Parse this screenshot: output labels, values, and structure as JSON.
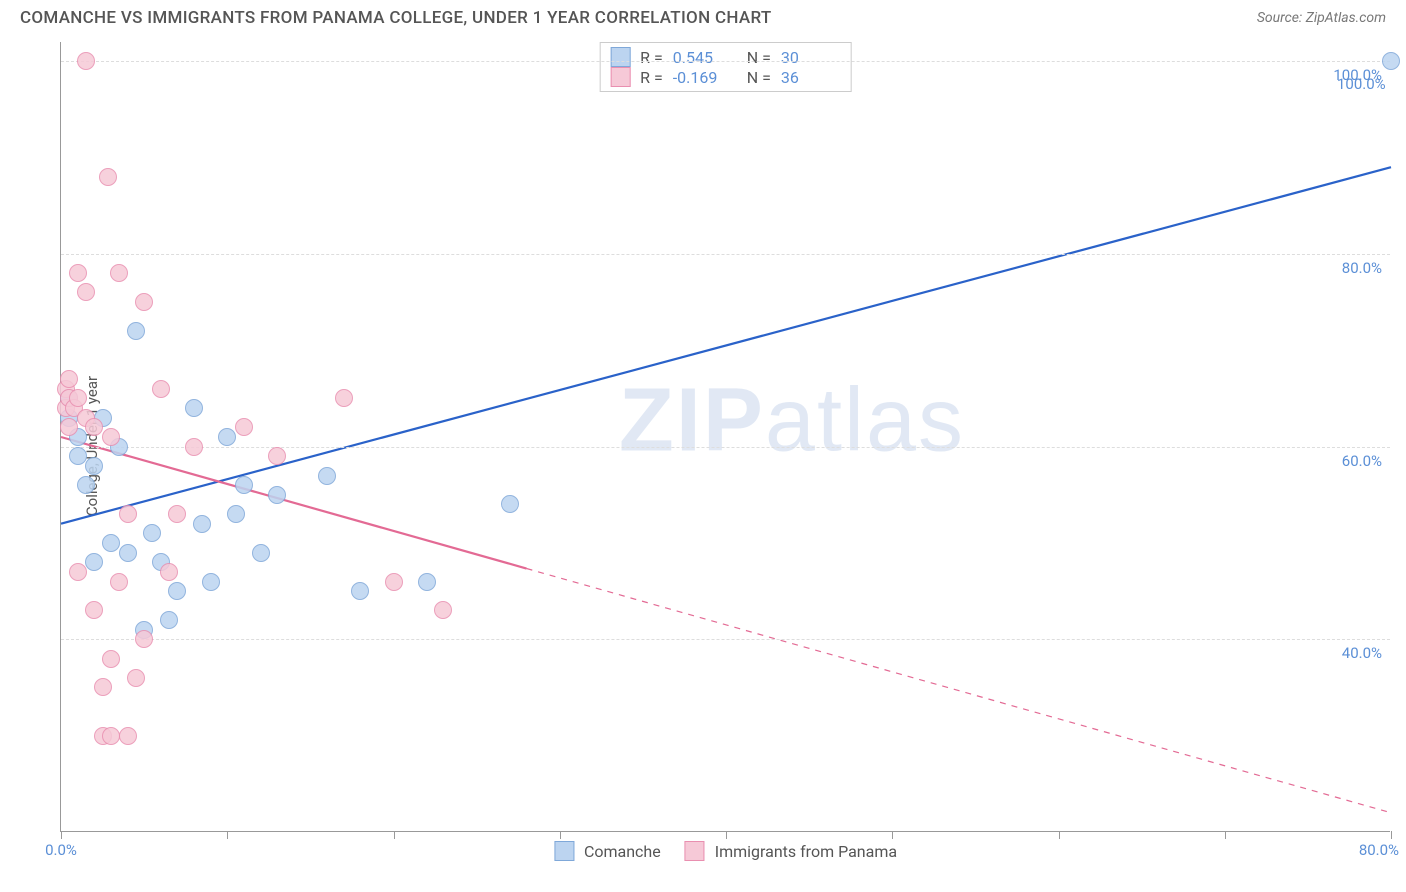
{
  "title": "COMANCHE VS IMMIGRANTS FROM PANAMA COLLEGE, UNDER 1 YEAR CORRELATION CHART",
  "source": "Source: ZipAtlas.com",
  "y_axis_label": "College, Under 1 year",
  "watermark": "ZIPatlas",
  "chart": {
    "type": "scatter",
    "xlim": [
      0,
      80
    ],
    "ylim": [
      20,
      102
    ],
    "x_ticks": [
      0,
      10,
      20,
      30,
      40,
      50,
      60,
      70,
      80
    ],
    "x_tick_labels": {
      "0": "0.0%",
      "80": "80.0%"
    },
    "y_gridlines": [
      40,
      60,
      80,
      100
    ],
    "y_tick_labels": {
      "40": "40.0%",
      "60": "60.0%",
      "80": "80.0%",
      "100": "100.0%"
    },
    "background_color": "#ffffff",
    "grid_color": "#dddddd",
    "axis_color": "#999999",
    "tick_label_color": "#5b8fd6",
    "marker_radius": 9,
    "marker_opacity": 0.85
  },
  "series": [
    {
      "name": "Comanche",
      "color_fill": "#bcd4f0",
      "color_stroke": "#7fa8d9",
      "R": "0.545",
      "N": "30",
      "trend": {
        "x1": 0,
        "y1": 52,
        "x2": 80,
        "y2": 89,
        "dashed_from_x": null
      },
      "line_color": "#2a62c9",
      "line_width": 2.2,
      "points": [
        [
          0.5,
          63
        ],
        [
          0.5,
          65
        ],
        [
          1,
          59
        ],
        [
          1,
          61
        ],
        [
          1.5,
          56
        ],
        [
          2,
          58
        ],
        [
          2,
          48
        ],
        [
          2.5,
          63
        ],
        [
          3,
          50
        ],
        [
          3.5,
          60
        ],
        [
          4,
          49
        ],
        [
          4.5,
          72
        ],
        [
          5,
          41
        ],
        [
          5.5,
          51
        ],
        [
          6,
          48
        ],
        [
          6.5,
          42
        ],
        [
          7,
          45
        ],
        [
          8,
          64
        ],
        [
          8.5,
          52
        ],
        [
          9,
          46
        ],
        [
          10,
          61
        ],
        [
          10.5,
          53
        ],
        [
          11,
          56
        ],
        [
          12,
          49
        ],
        [
          13,
          55
        ],
        [
          16,
          57
        ],
        [
          18,
          45
        ],
        [
          22,
          46
        ],
        [
          27,
          54
        ],
        [
          80,
          100
        ]
      ],
      "labeled_point": {
        "x": 80,
        "y": 100,
        "label": "100.0%"
      }
    },
    {
      "name": "Immigrants from Panama",
      "color_fill": "#f6c9d7",
      "color_stroke": "#e98fb0",
      "R": "-0.169",
      "N": "36",
      "trend": {
        "x1": 0,
        "y1": 61,
        "x2": 80,
        "y2": 22,
        "dashed_from_x": 28
      },
      "line_color": "#e36a94",
      "line_width": 2.2,
      "points": [
        [
          0.3,
          66
        ],
        [
          0.3,
          64
        ],
        [
          0.5,
          65
        ],
        [
          0.5,
          62
        ],
        [
          0.5,
          67
        ],
        [
          0.8,
          64
        ],
        [
          1,
          65
        ],
        [
          1,
          78
        ],
        [
          1,
          47
        ],
        [
          1.5,
          63
        ],
        [
          1.5,
          76
        ],
        [
          1.5,
          100
        ],
        [
          2,
          43
        ],
        [
          2,
          62
        ],
        [
          2.5,
          35
        ],
        [
          2.5,
          30
        ],
        [
          2.8,
          88
        ],
        [
          3,
          61
        ],
        [
          3,
          38
        ],
        [
          3,
          30
        ],
        [
          3.5,
          78
        ],
        [
          3.5,
          46
        ],
        [
          4,
          53
        ],
        [
          4,
          30
        ],
        [
          4.5,
          36
        ],
        [
          5,
          40
        ],
        [
          5,
          75
        ],
        [
          6,
          66
        ],
        [
          6.5,
          47
        ],
        [
          7,
          53
        ],
        [
          8,
          60
        ],
        [
          11,
          62
        ],
        [
          13,
          59
        ],
        [
          17,
          65
        ],
        [
          20,
          46
        ],
        [
          23,
          43
        ]
      ]
    }
  ],
  "legend_bottom": [
    "Comanche",
    "Immigrants from Panama"
  ]
}
